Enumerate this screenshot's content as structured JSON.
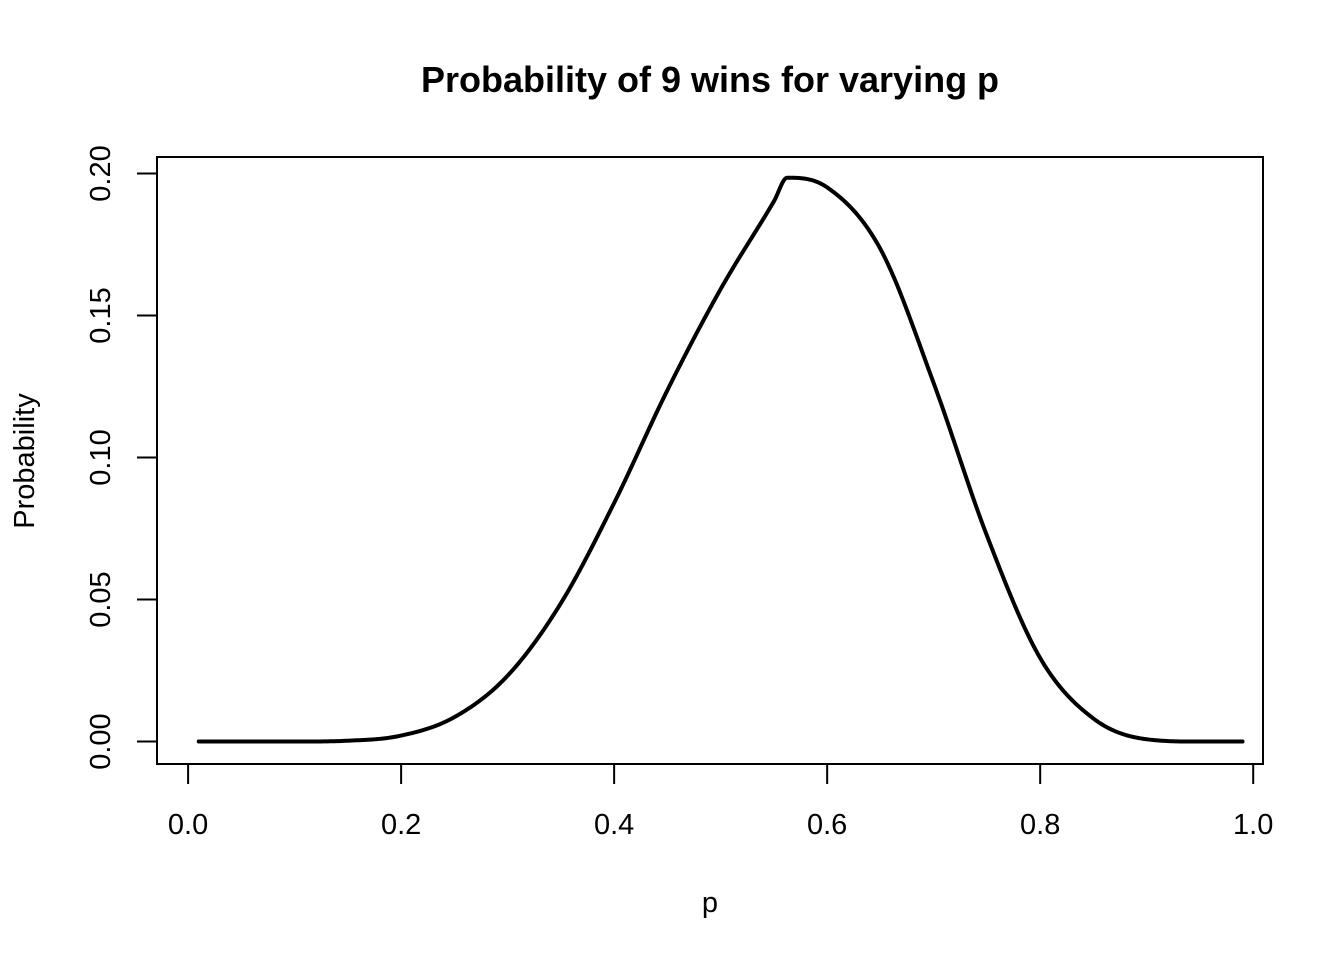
{
  "chart_data": {
    "type": "line",
    "title": "Probability of 9 wins for varying p",
    "xlabel": "p",
    "ylabel": "Probability",
    "xlim": [
      -0.0292,
      1.0092
    ],
    "ylim": [
      -0.0079,
      0.2058
    ],
    "x_ticks": [
      0.0,
      0.2,
      0.4,
      0.6,
      0.8,
      1.0
    ],
    "x_tick_labels": [
      "0.0",
      "0.2",
      "0.4",
      "0.6",
      "0.8",
      "1.0"
    ],
    "y_ticks": [
      0.0,
      0.05,
      0.1,
      0.15,
      0.2
    ],
    "y_tick_labels": [
      "0.00",
      "0.05",
      "0.10",
      "0.15",
      "0.20"
    ],
    "grid": false,
    "legend": "none",
    "line_color": "#000000",
    "series": [
      {
        "x": [
          0.01,
          0.05,
          0.1,
          0.15,
          0.2,
          0.25,
          0.3,
          0.35,
          0.4,
          0.45,
          0.5,
          0.55,
          0.5625,
          0.6,
          0.65,
          0.7,
          0.75,
          0.8,
          0.85,
          0.9,
          0.95,
          0.99
        ],
        "y": [
          0.0,
          0.0,
          0.0,
          0.0003,
          0.0021,
          0.0086,
          0.0232,
          0.0487,
          0.084,
          0.1237,
          0.1593,
          0.1902,
          0.1985,
          0.1951,
          0.1734,
          0.1262,
          0.0725,
          0.0294,
          0.0081,
          0.0008,
          0.0,
          0.0
        ]
      }
    ]
  }
}
